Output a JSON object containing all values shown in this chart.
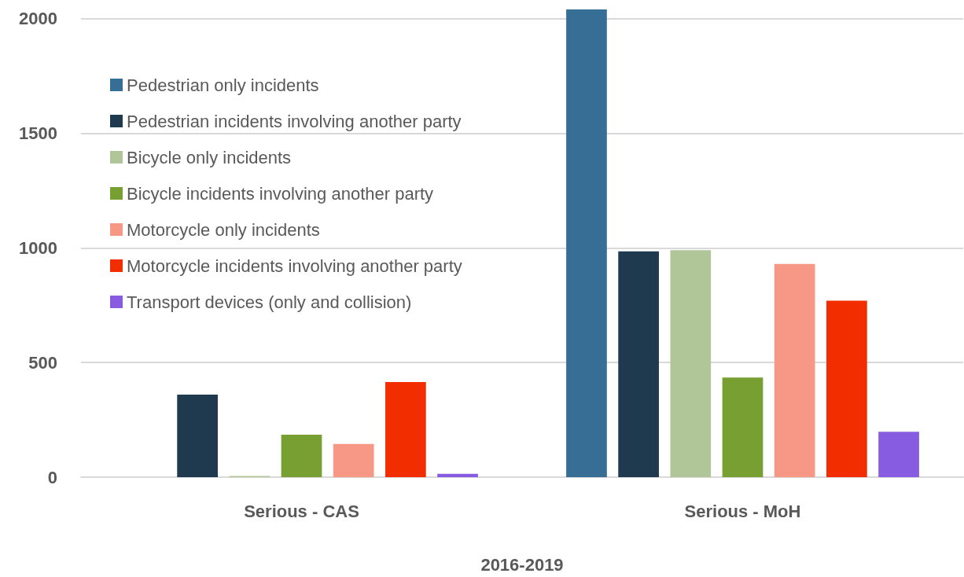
{
  "chart_data": {
    "type": "bar",
    "xlabel": "2016-2019",
    "categories": [
      "Serious - CAS",
      "Serious - MoH"
    ],
    "series": [
      {
        "name": "Pedestrian only incidents",
        "color": "#376e96",
        "values": [
          0,
          2040
        ]
      },
      {
        "name": "Pedestrian incidents involving another party",
        "color": "#1f3a4f",
        "values": [
          360,
          985
        ]
      },
      {
        "name": "Bicycle only incidents",
        "color": "#b0c699",
        "values": [
          5,
          990
        ]
      },
      {
        "name": "Bicycle incidents involving another party",
        "color": "#789f31",
        "values": [
          185,
          435
        ]
      },
      {
        "name": "Motorcycle only incidents",
        "color": "#f79887",
        "values": [
          145,
          930
        ]
      },
      {
        "name": "Motorcycle incidents involving another party",
        "color": "#f22e00",
        "values": [
          415,
          770
        ]
      },
      {
        "name": "Transport devices (only and collision)",
        "color": "#885ce0",
        "values": [
          15,
          198
        ]
      }
    ],
    "ylim": [
      0,
      2040
    ],
    "yticks": [
      0,
      500,
      1000,
      1500,
      2000
    ],
    "grid": "y",
    "legend": "top left"
  }
}
